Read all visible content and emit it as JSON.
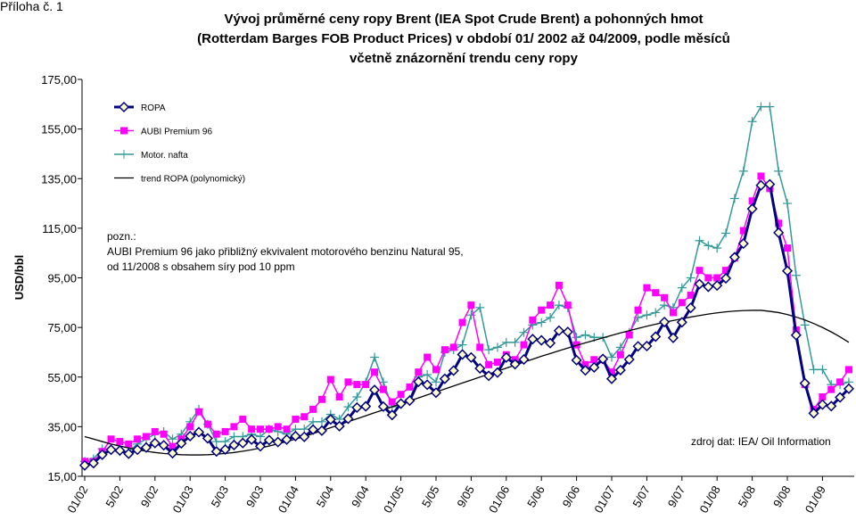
{
  "page_label": "Příloha č. 1",
  "chart_data": {
    "type": "line",
    "title": [
      "Vývoj průměrné ceny ropy Brent (IEA Spot Crude Brent) a pohonných hmot",
      "(Rotterdam Barges FOB Product Prices) v období 01/ 2002 až 04/2009, podle měsíců",
      "včetně znázornění trendu ceny ropy"
    ],
    "y_label": "USD/bbl",
    "ylim": [
      15,
      175
    ],
    "yticks": [
      {
        "value": 15,
        "label": "15,00"
      },
      {
        "value": 35,
        "label": "35,00"
      },
      {
        "value": 55,
        "label": "55,00"
      },
      {
        "value": 75,
        "label": "75,00"
      },
      {
        "value": 95,
        "label": "95,00"
      },
      {
        "value": 115,
        "label": "115,00"
      },
      {
        "value": 135,
        "label": "135,00"
      },
      {
        "value": 155,
        "label": "155,00"
      },
      {
        "value": 175,
        "label": "175,00"
      }
    ],
    "categories": [
      "01/02",
      null,
      null,
      null,
      "5/02",
      null,
      null,
      null,
      "9/02",
      null,
      null,
      null,
      "01/03",
      null,
      null,
      null,
      "5/03",
      null,
      null,
      null,
      "9/03",
      null,
      null,
      null,
      "01/04",
      null,
      null,
      null,
      "5/04",
      null,
      null,
      null,
      "9/04",
      null,
      null,
      null,
      "01/05",
      null,
      null,
      null,
      "5/05",
      null,
      null,
      null,
      "9/05",
      null,
      null,
      null,
      "01/06",
      null,
      null,
      null,
      "5/06",
      null,
      null,
      null,
      "9/06",
      null,
      null,
      null,
      "01/07",
      null,
      null,
      null,
      "5/07",
      null,
      null,
      null,
      "9/07",
      null,
      null,
      null,
      "01/08",
      null,
      null,
      null,
      "5/08",
      null,
      null,
      null,
      "9/08",
      null,
      null,
      null,
      "01/09",
      null,
      null,
      null
    ],
    "legend_position": "upper left",
    "series": [
      {
        "name": "ROPA",
        "color": "#000080",
        "marker": "diamond",
        "marker_fill": "#ffffcc",
        "values": [
          19.4,
          20.3,
          23.7,
          25.7,
          25.4,
          24.1,
          25.7,
          26.6,
          28.4,
          27.5,
          24.3,
          28.3,
          31.2,
          32.8,
          30.3,
          25.0,
          25.8,
          27.6,
          28.4,
          29.8,
          27.1,
          29.6,
          28.8,
          29.8,
          31.2,
          30.9,
          33.8,
          33.4,
          37.9,
          35.2,
          38.2,
          42.7,
          43.2,
          49.8,
          43.1,
          39.7,
          44.3,
          45.5,
          53.1,
          51.9,
          48.7,
          54.3,
          57.6,
          64.1,
          62.9,
          58.5,
          55.5,
          56.8,
          62.9,
          60.2,
          62.1,
          70.3,
          69.8,
          68.7,
          73.7,
          73.2,
          61.8,
          57.7,
          58.9,
          62.3,
          54.3,
          57.8,
          62.1,
          67.4,
          67.5,
          71.3,
          77.2,
          70.8,
          77.1,
          82.9,
          92.5,
          91.4,
          91.9,
          94.8,
          103.3,
          108.8,
          122.8,
          132.3,
          132.7,
          113.2,
          97.8,
          71.9,
          52.5,
          40.4,
          43.9,
          43.3,
          46.8,
          50.3
        ]
      },
      {
        "name": "AUBI Premium 96",
        "color": "#ff00ff",
        "marker": "square",
        "marker_fill": "#ff00ff",
        "values": [
          21,
          21,
          25,
          30,
          29,
          28,
          30,
          31,
          33,
          32,
          27,
          30,
          35,
          41,
          36,
          32,
          33,
          35,
          38,
          34,
          34,
          34,
          35,
          34,
          38,
          39,
          42,
          46,
          54,
          47,
          53,
          52,
          52,
          57,
          50,
          45,
          48,
          51,
          57,
          63,
          58,
          66,
          67,
          77,
          84,
          67,
          60,
          61,
          64,
          62,
          68,
          78,
          82,
          84,
          92,
          84,
          68,
          60,
          62,
          62,
          57,
          64,
          72,
          82,
          91,
          89,
          87,
          81,
          85,
          88,
          98,
          95,
          95,
          98,
          103,
          114,
          126,
          136,
          131,
          117,
          107,
          74,
          52,
          42,
          47,
          50,
          53,
          58
        ]
      },
      {
        "name": "Motor. nafta",
        "color": "#339999",
        "marker": "plus",
        "marker_fill": "#339999",
        "values": [
          21,
          22,
          26,
          26,
          25,
          25,
          28,
          30,
          32,
          33,
          30,
          32,
          37,
          42,
          36,
          29,
          29,
          31,
          31,
          32,
          31,
          34,
          33,
          32,
          34,
          34,
          37,
          37,
          40,
          38,
          43,
          47,
          53,
          63,
          53,
          43,
          44,
          46,
          55,
          56,
          53,
          65,
          66,
          68,
          80,
          83,
          66,
          67,
          69,
          69,
          73,
          76,
          77,
          79,
          84,
          83,
          71,
          72,
          71,
          71,
          63,
          67,
          73,
          79,
          80,
          81,
          84,
          83,
          91,
          95,
          110,
          108,
          107,
          113,
          127,
          138,
          158,
          164,
          164,
          138,
          125,
          96,
          76,
          58,
          58,
          52,
          52,
          53
        ]
      },
      {
        "name": "trend ROPA (polynomický)",
        "color": "#000000",
        "marker": "none",
        "marker_fill": "#000000",
        "values": [
          31,
          30,
          29,
          28,
          27.2,
          26.4,
          25.7,
          25.1,
          24.6,
          24.2,
          23.9,
          23.7,
          23.6,
          23.6,
          23.7,
          23.9,
          24.2,
          24.6,
          25.1,
          25.7,
          26.4,
          27.2,
          28.1,
          29,
          30,
          31,
          32.2,
          33.4,
          34.6,
          35.8,
          37,
          38.2,
          39.4,
          40.6,
          41.8,
          43,
          44.2,
          45.4,
          46.6,
          47.8,
          49,
          50.2,
          51.4,
          52.6,
          53.8,
          55,
          56.2,
          57.4,
          58.6,
          59.8,
          61,
          62.2,
          63.4,
          64.5,
          65.6,
          66.7,
          67.8,
          68.8,
          69.8,
          70.8,
          71.8,
          72.8,
          73.7,
          74.6,
          75.5,
          76.3,
          77.1,
          77.8,
          78.5,
          79.2,
          79.8,
          80.4,
          80.9,
          81.3,
          81.6,
          81.8,
          81.9,
          81.9,
          81.5,
          81,
          80.2,
          79.2,
          78,
          76.6,
          75,
          73.2,
          71.2,
          69
        ]
      }
    ],
    "annotations": [
      "pozn.:",
      "AUBI Premium 96  jako přibližný ekvivalent motorového benzinu Natural 95,",
      "od 11/2008 s obsahem síry pod 10 ppm"
    ],
    "source": "zdroj dat: IEA/ Oil Information"
  }
}
